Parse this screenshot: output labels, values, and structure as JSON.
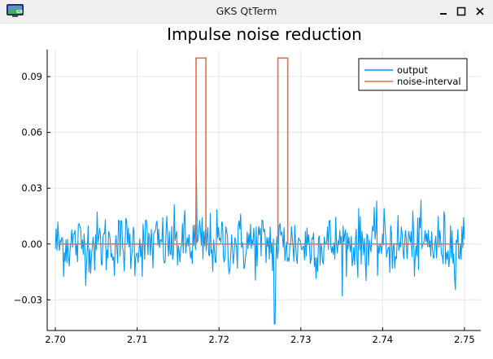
{
  "window": {
    "title": "GKS QtTerm",
    "app_icon": "gks-monitor-icon",
    "controls": [
      "minimize-icon",
      "maximize-icon",
      "close-icon"
    ]
  },
  "chart_data": {
    "type": "line",
    "title": "Impulse noise reduction",
    "xlabel": "",
    "ylabel": "",
    "xlim": [
      2.699,
      2.752
    ],
    "ylim": [
      -0.0465,
      0.1045
    ],
    "x_ticks": [
      2.7,
      2.71,
      2.72,
      2.73,
      2.74,
      2.75
    ],
    "x_tick_labels": [
      "2.70",
      "2.71",
      "2.72",
      "2.73",
      "2.74",
      "2.75"
    ],
    "y_ticks": [
      -0.03,
      0.0,
      0.03,
      0.06,
      0.09
    ],
    "y_tick_labels": [
      "−0.03",
      "0.00",
      "0.03",
      "0.06",
      "0.09"
    ],
    "grid": true,
    "legend_position": "top-right",
    "series": [
      {
        "name": "output",
        "color": "#009af9",
        "x_start": 2.7,
        "x_end": 2.75,
        "num_points": 500,
        "y_std": 0.0085,
        "y_min": -0.043,
        "y_max": 0.041,
        "description": "Dense noisy signal fluctuating around 0 roughly between -0.027 and +0.027, with isolated spikes to about +0.041 near x=2.7172 and about -0.043 near x=2.7268"
      },
      {
        "name": "noise-interval",
        "color": "#e26f46",
        "x": [
          2.7,
          2.7172,
          2.7172,
          2.7184,
          2.7184,
          2.7272,
          2.7272,
          2.7284,
          2.7284,
          2.75
        ],
        "y": [
          0.0,
          0.0,
          0.1,
          0.1,
          0.0,
          0.0,
          0.1,
          0.1,
          0.0,
          0.0
        ]
      }
    ]
  }
}
